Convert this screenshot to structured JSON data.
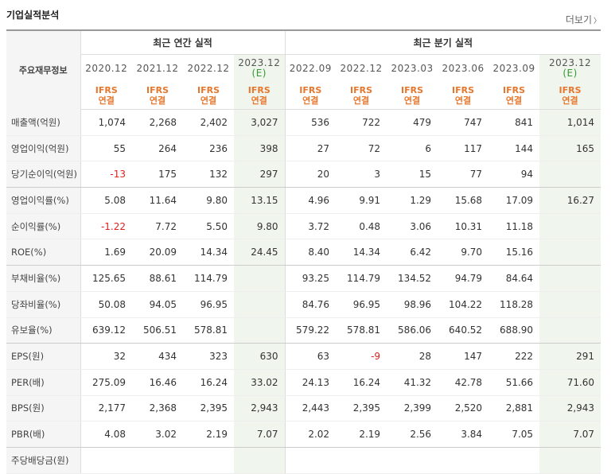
{
  "title": "기업실적분석",
  "more_label": "더보기",
  "table": {
    "row_header": "주요재무정보",
    "group_annual": "최근 연간 실적",
    "group_quarter": "최근 분기 실적",
    "periods": [
      {
        "date": "2020.12",
        "est": "",
        "basis1": "IFRS",
        "basis2": "연결"
      },
      {
        "date": "2021.12",
        "est": "",
        "basis1": "IFRS",
        "basis2": "연결"
      },
      {
        "date": "2022.12",
        "est": "",
        "basis1": "IFRS",
        "basis2": "연결"
      },
      {
        "date": "2023.12",
        "est": "(E)",
        "basis1": "IFRS",
        "basis2": "연결"
      },
      {
        "date": "2022.09",
        "est": "",
        "basis1": "IFRS",
        "basis2": "연결"
      },
      {
        "date": "2022.12",
        "est": "",
        "basis1": "IFRS",
        "basis2": "연결"
      },
      {
        "date": "2023.03",
        "est": "",
        "basis1": "IFRS",
        "basis2": "연결"
      },
      {
        "date": "2023.06",
        "est": "",
        "basis1": "IFRS",
        "basis2": "연결"
      },
      {
        "date": "2023.09",
        "est": "",
        "basis1": "IFRS",
        "basis2": "연결"
      },
      {
        "date": "2023.12",
        "est": "(E)",
        "basis1": "IFRS",
        "basis2": "연결"
      }
    ],
    "rows": [
      {
        "label": "매출액(억원)",
        "values": [
          "1,074",
          "2,268",
          "2,402",
          "3,027",
          "536",
          "722",
          "479",
          "747",
          "841",
          "1,014"
        ]
      },
      {
        "label": "영업이익(억원)",
        "values": [
          "55",
          "264",
          "236",
          "398",
          "27",
          "72",
          "6",
          "117",
          "144",
          "165"
        ]
      },
      {
        "label": "당기순이익(억원)",
        "values": [
          "-13",
          "175",
          "132",
          "297",
          "20",
          "3",
          "15",
          "77",
          "94",
          ""
        ]
      },
      {
        "label": "영업이익률(%)",
        "values": [
          "5.08",
          "11.64",
          "9.80",
          "13.15",
          "4.96",
          "9.91",
          "1.29",
          "15.68",
          "17.09",
          "16.27"
        ]
      },
      {
        "label": "순이익률(%)",
        "values": [
          "-1.22",
          "7.72",
          "5.50",
          "9.80",
          "3.72",
          "0.48",
          "3.06",
          "10.31",
          "11.18",
          ""
        ]
      },
      {
        "label": "ROE(%)",
        "values": [
          "1.69",
          "20.09",
          "14.34",
          "24.45",
          "8.40",
          "14.34",
          "6.42",
          "9.70",
          "15.16",
          ""
        ]
      },
      {
        "label": "부채비율(%)",
        "values": [
          "125.65",
          "88.61",
          "114.79",
          "",
          "93.25",
          "114.79",
          "134.52",
          "94.79",
          "84.64",
          ""
        ]
      },
      {
        "label": "당좌비율(%)",
        "values": [
          "50.08",
          "94.05",
          "96.95",
          "",
          "84.76",
          "96.95",
          "98.96",
          "104.22",
          "118.28",
          ""
        ]
      },
      {
        "label": "유보율(%)",
        "values": [
          "639.12",
          "506.51",
          "578.81",
          "",
          "579.22",
          "578.81",
          "586.06",
          "640.52",
          "688.90",
          ""
        ]
      },
      {
        "label": "EPS(원)",
        "values": [
          "32",
          "434",
          "323",
          "630",
          "63",
          "-9",
          "28",
          "147",
          "222",
          "291"
        ]
      },
      {
        "label": "PER(배)",
        "values": [
          "275.09",
          "16.46",
          "16.24",
          "33.02",
          "24.13",
          "16.24",
          "41.32",
          "42.78",
          "51.66",
          "71.60"
        ]
      },
      {
        "label": "BPS(원)",
        "values": [
          "2,177",
          "2,368",
          "2,395",
          "2,943",
          "2,443",
          "2,395",
          "2,399",
          "2,520",
          "2,881",
          "2,943"
        ]
      },
      {
        "label": "PBR(배)",
        "values": [
          "4.08",
          "3.02",
          "2.19",
          "7.07",
          "2.02",
          "2.19",
          "2.56",
          "3.84",
          "7.05",
          "7.07"
        ]
      },
      {
        "label": "주당배당금(원)",
        "values": [
          "",
          "",
          "",
          "",
          "",
          "",
          "",
          "",
          "",
          ""
        ]
      }
    ]
  }
}
